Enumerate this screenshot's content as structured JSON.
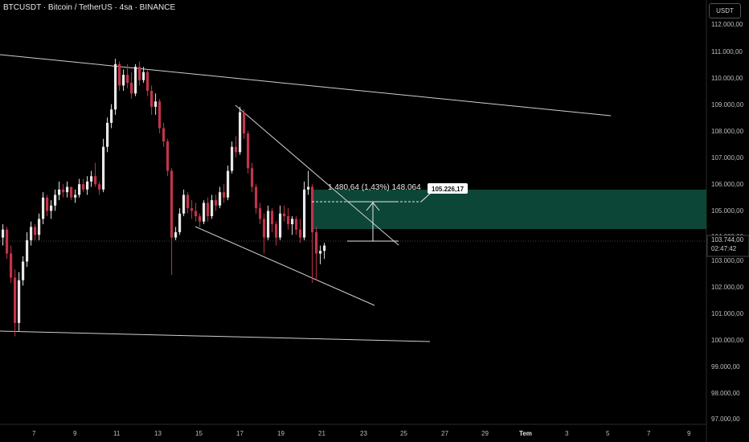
{
  "header": {
    "title": "BTCUSDT · Bitcoin / TetherUS · 4sa · BINANCE",
    "currency": "USDT"
  },
  "price_axis": {
    "ticks": [
      "112.000,00",
      "111.000,00",
      "110.000,00",
      "109.000,00",
      "108.000,00",
      "107.000,00",
      "106.000,00",
      "105.000,00",
      "104.000,00",
      "103.000,00",
      "102.000,00",
      "101.000,00",
      "100.000,00",
      "99.000,00",
      "98.000,00",
      "97.000,00"
    ],
    "current_price": "103.744,00",
    "countdown": "02:47:42"
  },
  "time_axis": {
    "labels": [
      "7",
      "9",
      "11",
      "13",
      "15",
      "17",
      "19",
      "21",
      "23",
      "25",
      "27",
      "29",
      "Tem",
      "3",
      "5",
      "7",
      "9"
    ]
  },
  "annotations": {
    "measure_text": "1.480,64 (1,43%) 148.064",
    "target_price": "105.226,17"
  },
  "colors": {
    "background": "#000000",
    "bull": "#e8e8e8",
    "bear": "#c2344a",
    "zone": "#0d4a3a",
    "trendline": "#cfcfcf"
  },
  "chart_data": {
    "type": "candlestick",
    "symbol": "BTCUSDT",
    "timeframe": "4sa",
    "exchange": "BINANCE",
    "ylim": [
      96800,
      112600
    ],
    "candles": [
      [
        104000,
        104500,
        103700,
        104300
      ],
      [
        104300,
        104400,
        103200,
        103400
      ],
      [
        103400,
        103700,
        102300,
        102500
      ],
      [
        102500,
        102800,
        100300,
        100800
      ],
      [
        100800,
        102700,
        100500,
        102400
      ],
      [
        102400,
        103300,
        102200,
        103100
      ],
      [
        103100,
        104200,
        102900,
        103900
      ],
      [
        103900,
        104600,
        103700,
        104400
      ],
      [
        104400,
        104500,
        103900,
        104100
      ],
      [
        104100,
        104900,
        103900,
        104700
      ],
      [
        104700,
        105700,
        104500,
        105500
      ],
      [
        105500,
        105600,
        104800,
        105000
      ],
      [
        105000,
        105400,
        104700,
        105200
      ],
      [
        105200,
        105800,
        105000,
        105600
      ],
      [
        105600,
        106100,
        105400,
        105800
      ],
      [
        105800,
        106000,
        105500,
        105700
      ],
      [
        105700,
        106100,
        105500,
        105900
      ],
      [
        105900,
        105900,
        105400,
        105500
      ],
      [
        105500,
        105800,
        105300,
        105600
      ],
      [
        105600,
        106200,
        105500,
        106000
      ],
      [
        106000,
        106200,
        105700,
        105800
      ],
      [
        105800,
        106300,
        105600,
        106100
      ],
      [
        106100,
        106500,
        105900,
        106300
      ],
      [
        106300,
        106800,
        105900,
        106000
      ],
      [
        106000,
        106100,
        105600,
        105800
      ],
      [
        105800,
        107700,
        105700,
        107400
      ],
      [
        107400,
        108500,
        107200,
        108300
      ],
      [
        108300,
        109000,
        108100,
        108800
      ],
      [
        108800,
        110700,
        108600,
        110500
      ],
      [
        110500,
        110600,
        109500,
        109700
      ],
      [
        109700,
        110300,
        109500,
        110100
      ],
      [
        110100,
        110500,
        109600,
        109800
      ],
      [
        109800,
        110200,
        109200,
        109400
      ],
      [
        109400,
        110500,
        109300,
        110400
      ],
      [
        110400,
        110600,
        109700,
        109900
      ],
      [
        109900,
        110400,
        109800,
        110200
      ],
      [
        110200,
        110300,
        109300,
        109500
      ],
      [
        109500,
        109700,
        108600,
        108900
      ],
      [
        108900,
        109400,
        108600,
        109100
      ],
      [
        109100,
        109200,
        107900,
        108100
      ],
      [
        108100,
        108300,
        107400,
        107600
      ],
      [
        107600,
        107700,
        106300,
        106500
      ],
      [
        106500,
        106600,
        102600,
        104000
      ],
      [
        104000,
        104400,
        103900,
        104200
      ],
      [
        104200,
        105100,
        104100,
        104900
      ],
      [
        104900,
        105800,
        104800,
        105600
      ],
      [
        105600,
        105700,
        104900,
        105100
      ],
      [
        105100,
        105400,
        104700,
        105000
      ],
      [
        105000,
        105300,
        104600,
        104800
      ],
      [
        104800,
        104900,
        104400,
        104600
      ],
      [
        104600,
        105400,
        104500,
        105300
      ],
      [
        105300,
        105500,
        104600,
        104800
      ],
      [
        104800,
        105600,
        104700,
        105400
      ],
      [
        105400,
        105600,
        105000,
        105200
      ],
      [
        105200,
        105900,
        105100,
        105700
      ],
      [
        105700,
        106000,
        105300,
        105500
      ],
      [
        105500,
        106700,
        105400,
        106500
      ],
      [
        106500,
        107600,
        106400,
        107400
      ],
      [
        107400,
        107800,
        107000,
        107200
      ],
      [
        107200,
        108900,
        107100,
        108700
      ],
      [
        108700,
        108800,
        107700,
        107900
      ],
      [
        107900,
        108000,
        106400,
        106600
      ],
      [
        106600,
        106800,
        105700,
        105900
      ],
      [
        105900,
        106000,
        104900,
        105100
      ],
      [
        105100,
        105300,
        104500,
        104700
      ],
      [
        104700,
        104900,
        103400,
        104000
      ],
      [
        104000,
        105200,
        103900,
        105000
      ],
      [
        105000,
        105100,
        104200,
        104500
      ],
      [
        104500,
        104600,
        103700,
        104000
      ],
      [
        104000,
        105200,
        103900,
        104900
      ],
      [
        104900,
        105200,
        104600,
        104800
      ],
      [
        104800,
        105100,
        104300,
        104500
      ],
      [
        104500,
        104800,
        104100,
        104700
      ],
      [
        104700,
        104800,
        104100,
        104300
      ],
      [
        104300,
        104700,
        103800,
        104000
      ],
      [
        104000,
        106100,
        103900,
        105800
      ],
      [
        105800,
        106500,
        105600,
        105900
      ],
      [
        105900,
        106000,
        102300,
        104200
      ],
      [
        104200,
        104400,
        102400,
        103400
      ],
      [
        103400,
        103700,
        103000,
        103500
      ],
      [
        103500,
        103800,
        103200,
        103700
      ]
    ]
  }
}
